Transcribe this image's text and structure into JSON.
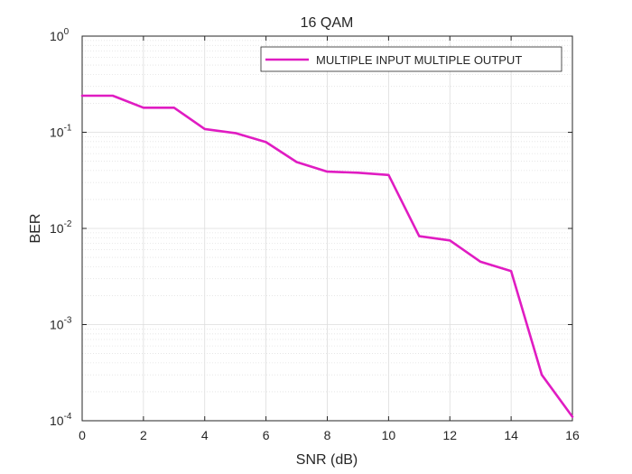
{
  "chart_data": {
    "type": "line",
    "title": "16 QAM",
    "xlabel": "SNR (dB)",
    "ylabel": "BER",
    "xlim": [
      0,
      16
    ],
    "ylim": [
      0.0001,
      1
    ],
    "yscale": "log",
    "grid": true,
    "minor_grid": true,
    "legend_position": "top-right",
    "x_ticks": [
      0,
      2,
      4,
      6,
      8,
      10,
      12,
      14,
      16
    ],
    "y_ticks": [
      {
        "value": 1,
        "base": "10",
        "exp": "0"
      },
      {
        "value": 0.1,
        "base": "10",
        "exp": "-1"
      },
      {
        "value": 0.01,
        "base": "10",
        "exp": "-2"
      },
      {
        "value": 0.001,
        "base": "10",
        "exp": "-3"
      },
      {
        "value": 0.0001,
        "base": "10",
        "exp": "-4"
      }
    ],
    "series": [
      {
        "name": "MULTIPLE INPUT MULTIPLE OUTPUT",
        "color": "#e01cc2",
        "x": [
          0,
          1,
          2,
          3,
          4,
          5,
          6,
          7,
          8,
          9,
          10,
          11,
          12,
          13,
          14,
          15,
          16
        ],
        "y": [
          0.24,
          0.24,
          0.18,
          0.18,
          0.108,
          0.098,
          0.079,
          0.049,
          0.039,
          0.038,
          0.036,
          0.0083,
          0.0075,
          0.0045,
          0.0036,
          0.0003,
          0.00011
        ]
      }
    ]
  }
}
